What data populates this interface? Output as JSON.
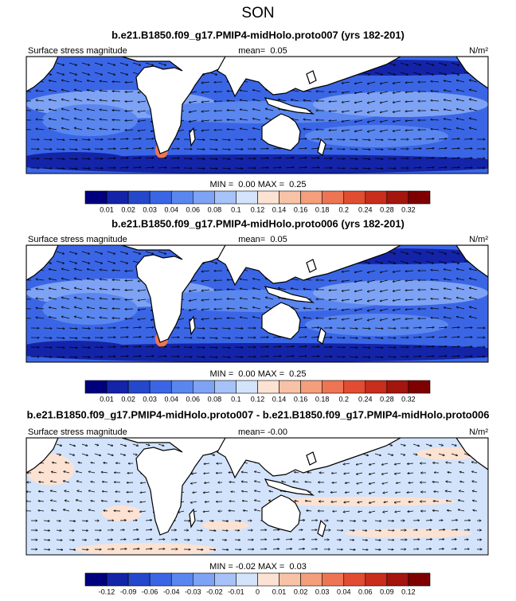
{
  "title": "SON",
  "colorbar_colors": [
    "#00007f",
    "#1424a8",
    "#2447cc",
    "#3a66e6",
    "#5a86f0",
    "#7ea3f5",
    "#a6c2f8",
    "#d2e3fb",
    "#fbe2d2",
    "#f8c2a6",
    "#f49e7c",
    "#ee7554",
    "#e24d31",
    "#c92d1b",
    "#a3150d",
    "#7f0000"
  ],
  "panels": [
    {
      "title": "b.e21.B1850.f09_g17.PMIP4-midHolo.proto007 (yrs 182-201)",
      "label": "Surface stress magnitude",
      "mean": "mean=  0.05",
      "units": "N/m²",
      "range": "MIN =  0.00 MAX =  0.25",
      "colorbar_labels": [
        "0.01",
        "0.02",
        "0.03",
        "0.04",
        "0.06",
        "0.08",
        "0.1",
        "0.12",
        "0.14",
        "0.16",
        "0.18",
        "0.2",
        "0.24",
        "0.28",
        "0.32"
      ]
    },
    {
      "title": "b.e21.B1850.f09_g17.PMIP4-midHolo.proto006 (yrs 182-201)",
      "label": "Surface stress magnitude",
      "mean": "mean=  0.05",
      "units": "N/m²",
      "range": "MIN =  0.00 MAX =  0.25",
      "colorbar_labels": [
        "0.01",
        "0.02",
        "0.03",
        "0.04",
        "0.06",
        "0.08",
        "0.1",
        "0.12",
        "0.14",
        "0.16",
        "0.18",
        "0.2",
        "0.24",
        "0.28",
        "0.32"
      ]
    },
    {
      "title": "b.e21.B1850.f09_g17.PMIP4-midHolo.proto007 - b.e21.B1850.f09_g17.PMIP4-midHolo.proto006",
      "label": "Surface stress magnitude",
      "mean": "mean= -0.00",
      "units": "N/m²",
      "range": "MIN = -0.02 MAX =  0.03",
      "colorbar_labels": [
        "-0.12",
        "-0.09",
        "-0.06",
        "-0.04",
        "-0.03",
        "-0.02",
        "-0.01",
        "0",
        "0.01",
        "0.02",
        "0.03",
        "0.04",
        "0.06",
        "0.09",
        "0.12"
      ]
    }
  ]
}
